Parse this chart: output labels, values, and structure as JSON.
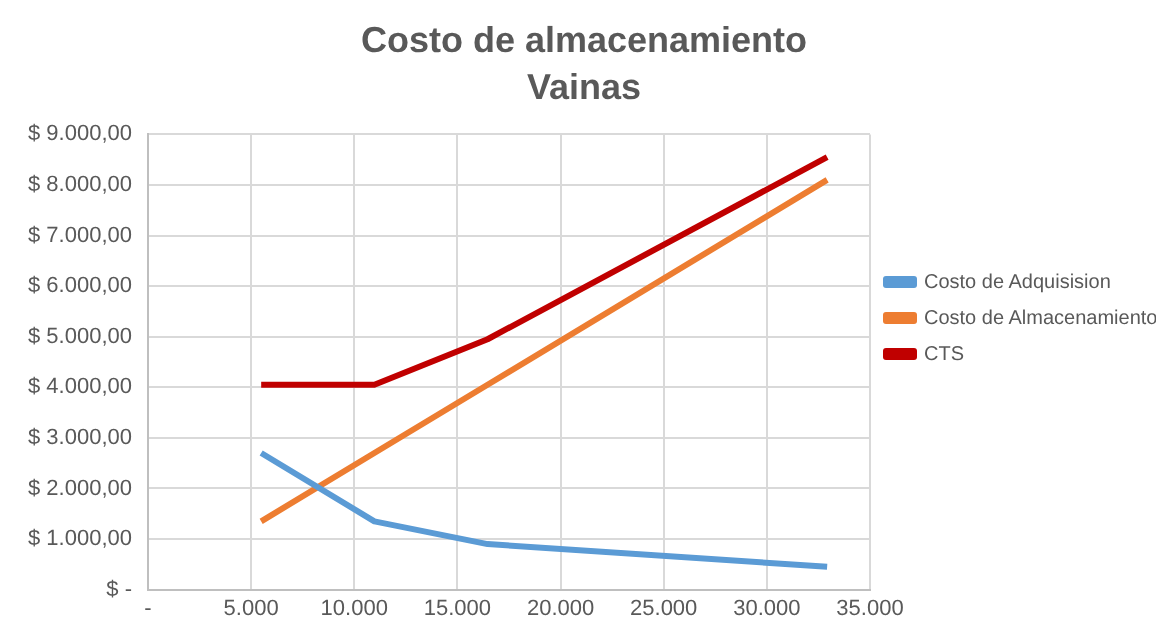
{
  "chart_data": {
    "type": "line",
    "title": "Costo de almacenamiento",
    "subtitle": "Vainas",
    "x": [
      5487,
      10974,
      16461,
      32922
    ],
    "series": [
      {
        "name": "Costo de Adquisision",
        "color": "#5b9bd5",
        "values": [
          2700,
          1350,
          900,
          450
        ]
      },
      {
        "name": "Costo de Almacenamiento",
        "color": "#ed7d31",
        "values": [
          1350,
          2700,
          4050,
          8100
        ]
      },
      {
        "name": "CTS",
        "color": "#c00000",
        "values": [
          4050,
          4050,
          4950,
          8550
        ]
      }
    ],
    "xlim": [
      0,
      35000
    ],
    "xticks": [
      {
        "value": 0,
        "label": "-"
      },
      {
        "value": 5000,
        "label": "5.000"
      },
      {
        "value": 10000,
        "label": "10.000"
      },
      {
        "value": 15000,
        "label": "15.000"
      },
      {
        "value": 20000,
        "label": "20.000"
      },
      {
        "value": 25000,
        "label": "25.000"
      },
      {
        "value": 30000,
        "label": "30.000"
      },
      {
        "value": 35000,
        "label": "35.000"
      }
    ],
    "ylim": [
      0,
      9000
    ],
    "yticks": [
      {
        "value": 0,
        "label": "$ -"
      },
      {
        "value": 1000,
        "label": "$ 1.000,00"
      },
      {
        "value": 2000,
        "label": "$ 2.000,00"
      },
      {
        "value": 3000,
        "label": "$ 3.000,00"
      },
      {
        "value": 4000,
        "label": "$ 4.000,00"
      },
      {
        "value": 5000,
        "label": "$ 5.000,00"
      },
      {
        "value": 6000,
        "label": "$ 6.000,00"
      },
      {
        "value": 7000,
        "label": "$ 7.000,00"
      },
      {
        "value": 8000,
        "label": "$ 8.000,00"
      },
      {
        "value": 9000,
        "label": "$ 9.000,00"
      }
    ],
    "grid": true,
    "legend": "right",
    "marker": "none",
    "line_style": "solid"
  }
}
